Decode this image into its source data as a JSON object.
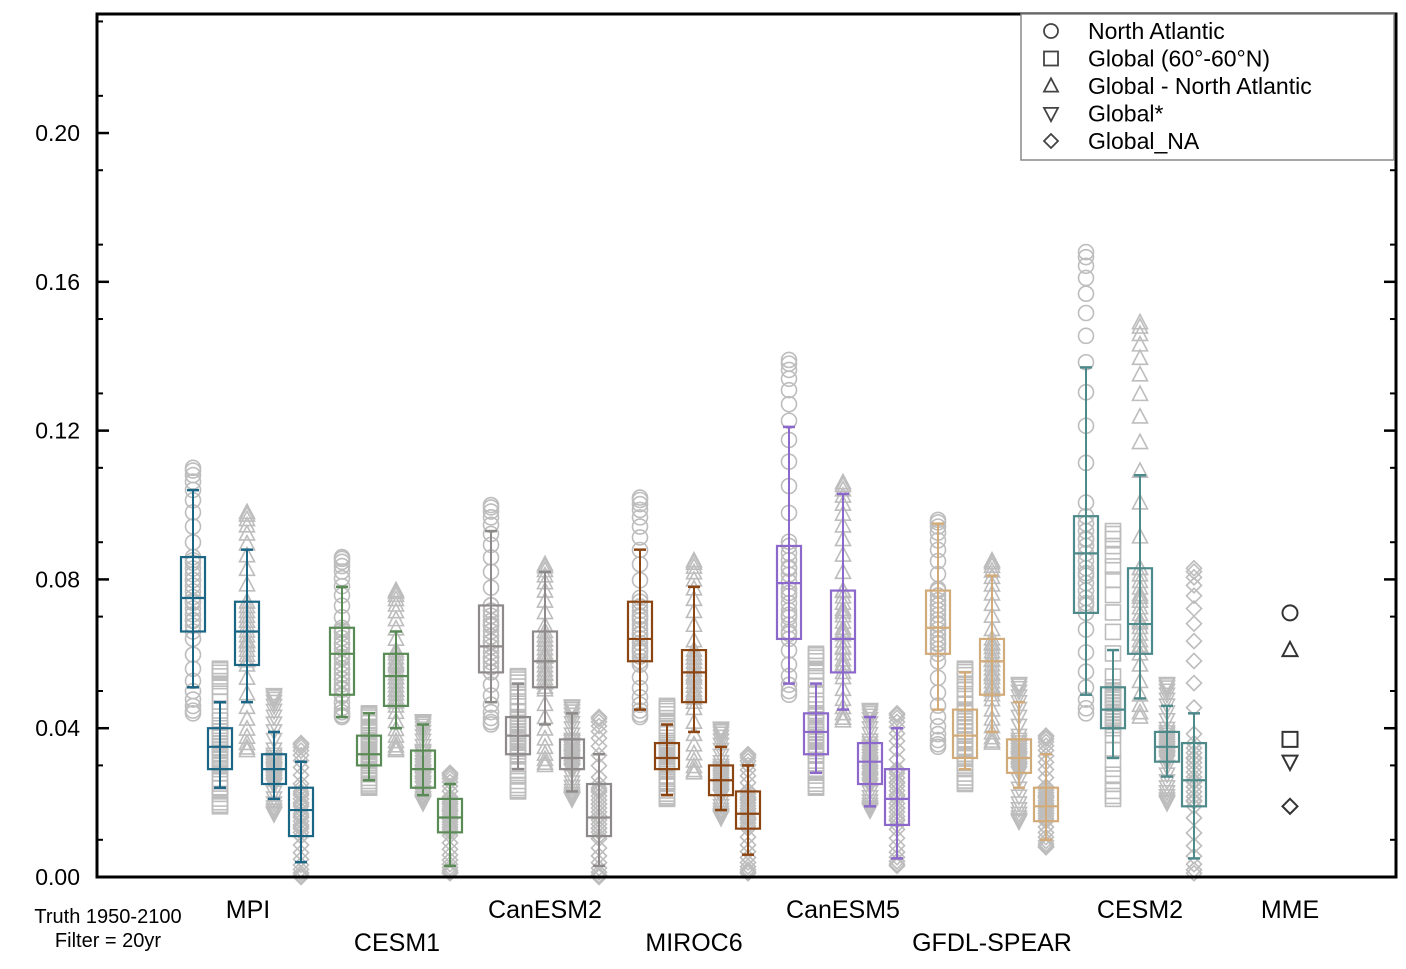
{
  "chart_data": {
    "type": "boxplot",
    "title": "",
    "xlabel": "",
    "ylabel": "",
    "ylim": [
      0.0,
      0.232
    ],
    "y_ticks": [
      "0.00",
      "0.04",
      "0.08",
      "0.12",
      "0.16",
      "0.20"
    ],
    "grid": false,
    "legend_position": "top-right",
    "legend": [
      {
        "marker": "circle",
        "label": "North Atlantic"
      },
      {
        "marker": "square",
        "label": "Global (60°-60°N)"
      },
      {
        "marker": "triangle-up",
        "label": "Global - North Atlantic"
      },
      {
        "marker": "triangle-down",
        "label": "Global*"
      },
      {
        "marker": "diamond",
        "label": "Global_NA"
      }
    ],
    "footnote": [
      "Truth 1950-2100",
      "Filter = 20yr"
    ],
    "models": [
      {
        "name": "MPI",
        "label_row": 1,
        "color": "#1b6684",
        "groups": [
          {
            "marker": "circle",
            "whislo": 0.051,
            "q1": 0.066,
            "med": 0.075,
            "q3": 0.086,
            "whishi": 0.104,
            "points_min": 0.044,
            "points_max": 0.11
          },
          {
            "marker": "square",
            "whislo": 0.024,
            "q1": 0.029,
            "med": 0.035,
            "q3": 0.04,
            "whishi": 0.047,
            "points_min": 0.019,
            "points_max": 0.056
          },
          {
            "marker": "triangle-up",
            "whislo": 0.047,
            "q1": 0.057,
            "med": 0.066,
            "q3": 0.074,
            "whishi": 0.088,
            "points_min": 0.034,
            "points_max": 0.098
          },
          {
            "marker": "triangle-down",
            "whislo": 0.021,
            "q1": 0.025,
            "med": 0.029,
            "q3": 0.033,
            "whishi": 0.039,
            "points_min": 0.017,
            "points_max": 0.049
          },
          {
            "marker": "diamond",
            "whislo": 0.004,
            "q1": 0.011,
            "med": 0.018,
            "q3": 0.024,
            "whishi": 0.031,
            "points_min": 0.0,
            "points_max": 0.036
          }
        ]
      },
      {
        "name": "CESM1",
        "label_row": 2,
        "color": "#5a8a55",
        "groups": [
          {
            "marker": "circle",
            "whislo": 0.043,
            "q1": 0.049,
            "med": 0.06,
            "q3": 0.067,
            "whishi": 0.078,
            "points_min": 0.043,
            "points_max": 0.086
          },
          {
            "marker": "square",
            "whislo": 0.026,
            "q1": 0.03,
            "med": 0.033,
            "q3": 0.038,
            "whishi": 0.044,
            "points_min": 0.024,
            "points_max": 0.044
          },
          {
            "marker": "triangle-up",
            "whislo": 0.04,
            "q1": 0.046,
            "med": 0.054,
            "q3": 0.06,
            "whishi": 0.066,
            "points_min": 0.034,
            "points_max": 0.077
          },
          {
            "marker": "triangle-down",
            "whislo": 0.022,
            "q1": 0.024,
            "med": 0.029,
            "q3": 0.034,
            "whishi": 0.041,
            "points_min": 0.02,
            "points_max": 0.042
          },
          {
            "marker": "diamond",
            "whislo": 0.003,
            "q1": 0.012,
            "med": 0.016,
            "q3": 0.021,
            "whishi": 0.025,
            "points_min": 0.001,
            "points_max": 0.028
          }
        ]
      },
      {
        "name": "CanESM2",
        "label_row": 1,
        "color": "#8e8a8a",
        "groups": [
          {
            "marker": "circle",
            "whislo": 0.047,
            "q1": 0.055,
            "med": 0.062,
            "q3": 0.073,
            "whishi": 0.093,
            "points_min": 0.041,
            "points_max": 0.1
          },
          {
            "marker": "square",
            "whislo": 0.029,
            "q1": 0.033,
            "med": 0.038,
            "q3": 0.043,
            "whishi": 0.052,
            "points_min": 0.023,
            "points_max": 0.054
          },
          {
            "marker": "triangle-up",
            "whislo": 0.041,
            "q1": 0.051,
            "med": 0.058,
            "q3": 0.066,
            "whishi": 0.082,
            "points_min": 0.03,
            "points_max": 0.084
          },
          {
            "marker": "triangle-down",
            "whislo": 0.023,
            "q1": 0.029,
            "med": 0.032,
            "q3": 0.037,
            "whishi": 0.044,
            "points_min": 0.021,
            "points_max": 0.046
          },
          {
            "marker": "diamond",
            "whislo": 0.003,
            "q1": 0.011,
            "med": 0.016,
            "q3": 0.025,
            "whishi": 0.033,
            "points_min": 0.0,
            "points_max": 0.043
          }
        ]
      },
      {
        "name": "MIROC6",
        "label_row": 2,
        "color": "#8b4513",
        "groups": [
          {
            "marker": "circle",
            "whislo": 0.045,
            "q1": 0.058,
            "med": 0.064,
            "q3": 0.074,
            "whishi": 0.088,
            "points_min": 0.043,
            "points_max": 0.102
          },
          {
            "marker": "square",
            "whislo": 0.022,
            "q1": 0.029,
            "med": 0.032,
            "q3": 0.036,
            "whishi": 0.041,
            "points_min": 0.021,
            "points_max": 0.046
          },
          {
            "marker": "triangle-up",
            "whislo": 0.039,
            "q1": 0.047,
            "med": 0.055,
            "q3": 0.061,
            "whishi": 0.078,
            "points_min": 0.028,
            "points_max": 0.085
          },
          {
            "marker": "triangle-down",
            "whislo": 0.018,
            "q1": 0.022,
            "med": 0.026,
            "q3": 0.03,
            "whishi": 0.035,
            "points_min": 0.016,
            "points_max": 0.04
          },
          {
            "marker": "diamond",
            "whislo": 0.006,
            "q1": 0.013,
            "med": 0.017,
            "q3": 0.023,
            "whishi": 0.03,
            "points_min": 0.001,
            "points_max": 0.033
          }
        ]
      },
      {
        "name": "CanESM5",
        "label_row": 1,
        "color": "#8b68c9",
        "groups": [
          {
            "marker": "circle",
            "whislo": 0.052,
            "q1": 0.064,
            "med": 0.079,
            "q3": 0.089,
            "whishi": 0.121,
            "points_min": 0.049,
            "points_max": 0.139
          },
          {
            "marker": "square",
            "whislo": 0.028,
            "q1": 0.033,
            "med": 0.039,
            "q3": 0.044,
            "whishi": 0.052,
            "points_min": 0.024,
            "points_max": 0.06
          },
          {
            "marker": "triangle-up",
            "whislo": 0.045,
            "q1": 0.055,
            "med": 0.064,
            "q3": 0.077,
            "whishi": 0.103,
            "points_min": 0.042,
            "points_max": 0.106
          },
          {
            "marker": "triangle-down",
            "whislo": 0.019,
            "q1": 0.025,
            "med": 0.031,
            "q3": 0.036,
            "whishi": 0.043,
            "points_min": 0.018,
            "points_max": 0.045
          },
          {
            "marker": "diamond",
            "whislo": 0.005,
            "q1": 0.014,
            "med": 0.021,
            "q3": 0.029,
            "whishi": 0.04,
            "points_min": 0.003,
            "points_max": 0.044
          }
        ]
      },
      {
        "name": "GFDL-SPEAR",
        "label_row": 2,
        "color": "#d2ab7a",
        "groups": [
          {
            "marker": "circle",
            "whislo": 0.045,
            "q1": 0.06,
            "med": 0.067,
            "q3": 0.077,
            "whishi": 0.095,
            "points_min": 0.035,
            "points_max": 0.096
          },
          {
            "marker": "square",
            "whislo": 0.029,
            "q1": 0.032,
            "med": 0.038,
            "q3": 0.045,
            "whishi": 0.055,
            "points_min": 0.025,
            "points_max": 0.056
          },
          {
            "marker": "triangle-up",
            "whislo": 0.039,
            "q1": 0.049,
            "med": 0.058,
            "q3": 0.064,
            "whishi": 0.081,
            "points_min": 0.036,
            "points_max": 0.085
          },
          {
            "marker": "triangle-down",
            "whislo": 0.024,
            "q1": 0.028,
            "med": 0.032,
            "q3": 0.037,
            "whishi": 0.047,
            "points_min": 0.015,
            "points_max": 0.052
          },
          {
            "marker": "diamond",
            "whislo": 0.01,
            "q1": 0.015,
            "med": 0.019,
            "q3": 0.024,
            "whishi": 0.033,
            "points_min": 0.008,
            "points_max": 0.038
          }
        ]
      },
      {
        "name": "CESM2",
        "label_row": 1,
        "color": "#4f8a8b",
        "groups": [
          {
            "marker": "circle",
            "whislo": 0.049,
            "q1": 0.071,
            "med": 0.087,
            "q3": 0.097,
            "whishi": 0.137,
            "points_min": 0.044,
            "points_max": 0.168
          },
          {
            "marker": "square",
            "whislo": 0.032,
            "q1": 0.04,
            "med": 0.045,
            "q3": 0.051,
            "whishi": 0.061,
            "points_min": 0.021,
            "points_max": 0.093
          },
          {
            "marker": "triangle-up",
            "whislo": 0.048,
            "q1": 0.06,
            "med": 0.068,
            "q3": 0.083,
            "whishi": 0.108,
            "points_min": 0.043,
            "points_max": 0.149
          },
          {
            "marker": "triangle-down",
            "whislo": 0.027,
            "q1": 0.031,
            "med": 0.035,
            "q3": 0.039,
            "whishi": 0.046,
            "points_min": 0.02,
            "points_max": 0.052
          },
          {
            "marker": "diamond",
            "whislo": 0.005,
            "q1": 0.019,
            "med": 0.026,
            "q3": 0.036,
            "whishi": 0.044,
            "points_min": 0.001,
            "points_max": 0.083
          }
        ]
      },
      {
        "name": "MME",
        "label_row": 1,
        "color": "#333333",
        "points": [
          {
            "marker": "circle",
            "value": 0.071
          },
          {
            "marker": "square",
            "value": 0.037
          },
          {
            "marker": "triangle-up",
            "value": 0.061
          },
          {
            "marker": "triangle-down",
            "value": 0.031
          },
          {
            "marker": "diamond",
            "value": 0.019
          }
        ]
      }
    ]
  }
}
